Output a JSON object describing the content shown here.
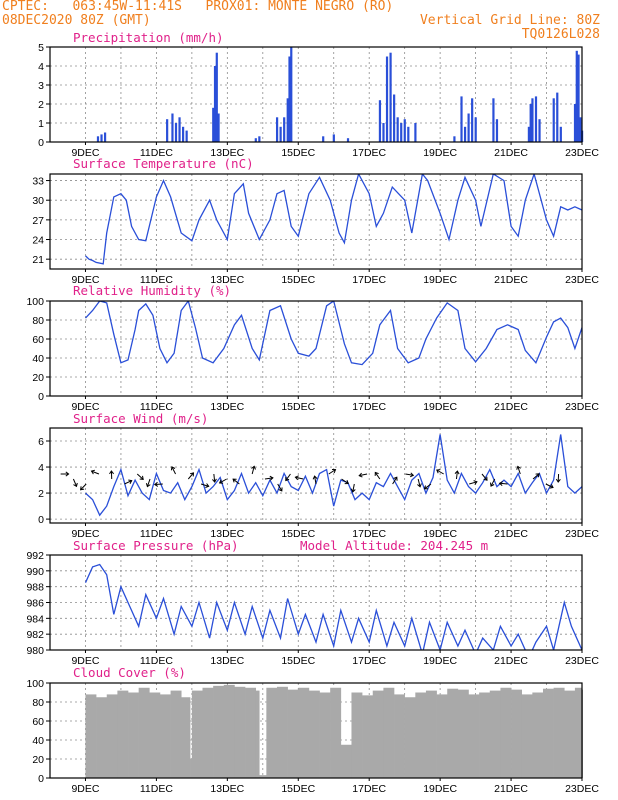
{
  "header": {
    "line1_left": "CPTEC:   063:45W-11:41S   PROX01: MONTE NEGRO (RO)",
    "line2_left": "08DEC2020 80Z (GMT)",
    "line2_right": "Vertical Grid Line: 80Z",
    "line3_right": "TQ0126L028"
  },
  "colors": {
    "header": "#f07f1e",
    "title": "#e0218a",
    "line": "#2a4fd8",
    "cloud": "#a9a9a9"
  },
  "x_tick_labels": [
    "9DEC",
    "11DEC",
    "13DEC",
    "15DEC",
    "17DEC",
    "19DEC",
    "21DEC",
    "23DEC"
  ],
  "chart_data": [
    {
      "id": "precip",
      "type": "bar",
      "title": "Precipitation (mm/h)",
      "ylim": [
        0,
        5
      ],
      "yticks": [
        0,
        1,
        2,
        3,
        4,
        5
      ],
      "x": [
        0.35,
        0.45,
        0.55,
        2.3,
        2.45,
        2.55,
        2.65,
        2.75,
        2.85,
        3.6,
        3.65,
        3.7,
        3.75,
        4.8,
        4.9,
        5.4,
        5.5,
        5.6,
        5.7,
        5.75,
        5.8,
        6.7,
        7.0,
        7.4,
        8.3,
        8.4,
        8.5,
        8.6,
        8.7,
        8.8,
        8.9,
        9.0,
        9.1,
        9.3,
        10.4,
        10.6,
        10.7,
        10.8,
        10.9,
        11.0,
        11.5,
        11.6,
        12.5,
        12.55,
        12.6,
        12.7,
        12.8,
        13.2,
        13.3,
        13.4,
        13.8,
        13.85,
        13.9,
        13.95,
        14.0
      ],
      "values": [
        0.3,
        0.4,
        0.5,
        1.2,
        1.5,
        1.0,
        1.3,
        0.8,
        0.6,
        1.8,
        4.0,
        4.7,
        1.5,
        0.2,
        0.3,
        1.3,
        0.8,
        1.3,
        2.3,
        4.5,
        5.0,
        0.3,
        0.4,
        0.2,
        2.2,
        1.0,
        4.5,
        4.7,
        2.5,
        1.3,
        1.0,
        1.2,
        0.8,
        1.0,
        0.3,
        2.4,
        0.8,
        1.5,
        2.3,
        1.3,
        2.3,
        1.2,
        0.8,
        2.0,
        2.3,
        2.4,
        1.2,
        2.3,
        2.6,
        0.8,
        2.0,
        4.8,
        4.6,
        1.3,
        0.6
      ]
    },
    {
      "id": "temp",
      "type": "line",
      "title": "Surface Temperature (nC)",
      "ylim": [
        19.5,
        34
      ],
      "yticks": [
        21,
        24,
        27,
        30,
        33
      ],
      "x": [
        0,
        0.1,
        0.2,
        0.3,
        0.5,
        0.6,
        0.8,
        1.0,
        1.15,
        1.3,
        1.5,
        1.7,
        2.0,
        2.2,
        2.4,
        2.7,
        3.0,
        3.2,
        3.5,
        3.7,
        4.0,
        4.2,
        4.45,
        4.6,
        4.9,
        5.2,
        5.4,
        5.6,
        5.8,
        6.0,
        6.3,
        6.6,
        6.9,
        7.15,
        7.3,
        7.5,
        7.7,
        8.0,
        8.2,
        8.4,
        8.65,
        9.0,
        9.2,
        9.5,
        9.65,
        10.0,
        10.25,
        10.5,
        10.7,
        11.0,
        11.15,
        11.5,
        11.8,
        12.0,
        12.2,
        12.4,
        12.65,
        13.0,
        13.2,
        13.4,
        13.6,
        13.8,
        14.0
      ],
      "values": [
        21.5,
        21.0,
        20.8,
        20.5,
        20.3,
        25.0,
        30.5,
        31.0,
        30.0,
        26.0,
        24.0,
        23.8,
        30.5,
        33.0,
        30.5,
        25.0,
        23.8,
        27.0,
        30.0,
        27.0,
        24.0,
        31.0,
        32.5,
        28.0,
        24.0,
        27.0,
        31.0,
        31.5,
        26.0,
        24.5,
        31.0,
        33.5,
        30.0,
        25.0,
        23.5,
        30.0,
        34.0,
        31.0,
        26.0,
        28.0,
        32.0,
        30.0,
        25.0,
        34.0,
        33.0,
        28.0,
        24.0,
        30.0,
        33.5,
        30.0,
        26.0,
        34.0,
        33.0,
        26.0,
        24.5,
        30.0,
        34.0,
        27.0,
        24.5,
        29.0,
        28.5,
        29.0,
        28.5
      ]
    },
    {
      "id": "rh",
      "type": "line",
      "title": "Relative Humidity (%)",
      "ylim": [
        0,
        100
      ],
      "yticks": [
        0,
        20,
        40,
        60,
        80,
        100
      ],
      "x": [
        0,
        0.2,
        0.4,
        0.6,
        0.8,
        1.0,
        1.2,
        1.4,
        1.5,
        1.7,
        1.9,
        2.1,
        2.3,
        2.5,
        2.7,
        2.9,
        3.1,
        3.3,
        3.6,
        3.9,
        4.2,
        4.4,
        4.7,
        4.9,
        5.2,
        5.5,
        5.8,
        6.0,
        6.3,
        6.5,
        6.8,
        7.0,
        7.3,
        7.5,
        7.8,
        8.1,
        8.3,
        8.6,
        8.8,
        9.1,
        9.4,
        9.6,
        9.9,
        10.2,
        10.5,
        10.7,
        11.0,
        11.3,
        11.6,
        11.9,
        12.2,
        12.4,
        12.7,
        13.0,
        13.2,
        13.4,
        13.6,
        13.8,
        14.0
      ],
      "values": [
        82,
        90,
        100,
        98,
        65,
        35,
        38,
        70,
        90,
        97,
        85,
        50,
        35,
        45,
        90,
        100,
        72,
        40,
        35,
        50,
        75,
        85,
        50,
        38,
        90,
        95,
        60,
        45,
        42,
        50,
        95,
        100,
        55,
        35,
        33,
        45,
        75,
        90,
        50,
        35,
        40,
        60,
        82,
        98,
        90,
        50,
        36,
        50,
        70,
        75,
        70,
        48,
        35,
        62,
        78,
        82,
        72,
        50,
        72
      ]
    },
    {
      "id": "wind",
      "type": "line",
      "title": "Surface Wind (m/s)",
      "ylim": [
        -0.3,
        7
      ],
      "yticks": [
        0,
        2,
        4,
        6
      ],
      "x": [
        0,
        0.2,
        0.4,
        0.6,
        0.8,
        1.0,
        1.2,
        1.4,
        1.6,
        1.8,
        2.0,
        2.2,
        2.4,
        2.6,
        2.8,
        3.0,
        3.2,
        3.4,
        3.6,
        3.8,
        4.0,
        4.2,
        4.4,
        4.6,
        4.8,
        5.0,
        5.2,
        5.4,
        5.6,
        5.8,
        6.0,
        6.2,
        6.4,
        6.6,
        6.8,
        7.0,
        7.2,
        7.4,
        7.6,
        7.8,
        8.0,
        8.2,
        8.4,
        8.6,
        8.8,
        9.0,
        9.2,
        9.4,
        9.6,
        9.8,
        10.0,
        10.2,
        10.4,
        10.6,
        10.8,
        11.0,
        11.2,
        11.4,
        11.6,
        11.8,
        12.0,
        12.2,
        12.4,
        12.6,
        12.8,
        13.0,
        13.2,
        13.4,
        13.6,
        13.8,
        14.0
      ],
      "values": [
        2.0,
        1.5,
        0.3,
        1.0,
        2.5,
        3.8,
        1.8,
        3.0,
        2.0,
        1.5,
        3.5,
        2.2,
        2.0,
        2.8,
        1.5,
        2.5,
        3.8,
        2.0,
        2.5,
        3.2,
        1.5,
        2.2,
        3.5,
        2.0,
        2.8,
        1.8,
        3.0,
        2.0,
        3.5,
        2.5,
        2.2,
        3.3,
        2.0,
        3.5,
        3.8,
        1.0,
        3.0,
        2.8,
        1.5,
        2.0,
        1.5,
        2.8,
        2.5,
        3.5,
        2.5,
        1.5,
        3.0,
        3.5,
        2.0,
        3.2,
        6.5,
        3.0,
        2.0,
        3.5,
        2.5,
        2.0,
        2.8,
        3.8,
        2.5,
        3.0,
        2.5,
        3.5,
        2.0,
        2.8,
        3.5,
        2.0,
        3.0,
        6.5,
        2.5,
        2.0,
        2.5
      ]
    },
    {
      "id": "pres",
      "type": "line",
      "title": "Surface Pressure (hPa)",
      "subtitle": "Model Altitude: 204.245 m",
      "ylim": [
        980,
        992
      ],
      "yticks": [
        980,
        982,
        984,
        986,
        988,
        990,
        992
      ],
      "x": [
        0,
        0.2,
        0.4,
        0.6,
        0.8,
        1.0,
        1.2,
        1.5,
        1.7,
        2.0,
        2.2,
        2.5,
        2.7,
        3.0,
        3.2,
        3.5,
        3.7,
        4.0,
        4.2,
        4.5,
        4.7,
        5.0,
        5.2,
        5.5,
        5.7,
        6.0,
        6.2,
        6.5,
        6.7,
        7.0,
        7.2,
        7.5,
        7.7,
        8.0,
        8.2,
        8.5,
        8.7,
        9.0,
        9.2,
        9.5,
        9.7,
        10.0,
        10.2,
        10.5,
        10.7,
        11.0,
        11.2,
        11.5,
        11.7,
        12.0,
        12.2,
        12.5,
        12.7,
        13.0,
        13.2,
        13.5,
        13.7,
        14.0
      ],
      "values": [
        988.5,
        990.5,
        990.8,
        989.5,
        984.5,
        988.0,
        986.0,
        983.0,
        987.0,
        984.0,
        986.5,
        982.0,
        985.5,
        983.0,
        986.0,
        981.5,
        986.0,
        982.5,
        986.0,
        982.0,
        985.5,
        981.5,
        985.0,
        981.5,
        986.5,
        982.0,
        984.5,
        981.0,
        984.5,
        980.5,
        985.0,
        981.0,
        984.0,
        981.0,
        985.0,
        980.5,
        983.5,
        980.5,
        984.0,
        979.5,
        983.5,
        980.0,
        983.5,
        980.5,
        982.5,
        979.5,
        981.5,
        980.0,
        983.0,
        980.5,
        982.0,
        979.0,
        981.0,
        983.0,
        980.0,
        986.0,
        983.0,
        980.0
      ]
    },
    {
      "id": "cloud",
      "type": "area",
      "title": "Cloud Cover (%)",
      "ylim": [
        0,
        100
      ],
      "yticks": [
        0,
        20,
        40,
        60,
        80,
        100
      ],
      "x": [
        0,
        0.3,
        0.6,
        0.9,
        1.2,
        1.5,
        1.8,
        2.1,
        2.4,
        2.7,
        2.95,
        3.0,
        3.3,
        3.6,
        3.9,
        4.2,
        4.5,
        4.8,
        4.9,
        5.1,
        5.4,
        5.7,
        6.0,
        6.3,
        6.6,
        6.9,
        7.2,
        7.5,
        7.8,
        8.1,
        8.4,
        8.7,
        9.0,
        9.3,
        9.6,
        9.9,
        10.2,
        10.5,
        10.8,
        11.1,
        11.4,
        11.7,
        12.0,
        12.3,
        12.6,
        12.9,
        13.2,
        13.5,
        13.8,
        14.0
      ],
      "values": [
        88,
        85,
        88,
        92,
        90,
        95,
        90,
        88,
        92,
        85,
        20,
        92,
        95,
        97,
        98,
        96,
        95,
        92,
        3,
        95,
        96,
        93,
        95,
        92,
        90,
        95,
        35,
        90,
        87,
        92,
        95,
        88,
        85,
        90,
        92,
        88,
        94,
        93,
        88,
        90,
        92,
        95,
        93,
        88,
        90,
        94,
        95,
        92,
        95,
        93
      ]
    }
  ]
}
